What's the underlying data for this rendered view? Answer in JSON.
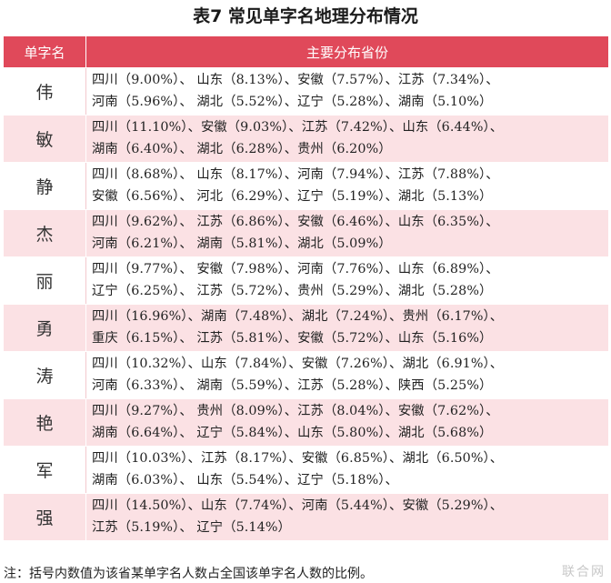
{
  "title": "表7 常见单字名地理分布情况",
  "header": {
    "col1": "单字名",
    "col2": "主要分布省份"
  },
  "rows": [
    {
      "name": "伟",
      "line1": "四川（9.00%）、 山东（8.13%）、安徽（7.57%）、江苏（7.34%）、",
      "line2": "河南（5.96%）、 湖北（5.52%）、辽宁（5.28%）、湖南（5.10%）"
    },
    {
      "name": "敏",
      "line1": "四川（11.10%）、安徽（9.03%）、江苏（7.42%）、山东（6.44%）、",
      "line2": "湖南（6.40%）、 湖北（6.28%）、贵州（6.20%）"
    },
    {
      "name": "静",
      "line1": "四川（8.68%）、 山东（8.17%）、河南（7.94%）、江苏（7.88%）、",
      "line2": "安徽（6.56%）、 河北（6.29%）、辽宁（5.19%）、湖北（5.13%）"
    },
    {
      "name": "杰",
      "line1": "四川（9.62%）、 江苏（6.86%）、安徽（6.46%）、山东（6.35%）、",
      "line2": "河南（6.21%）、 湖南（5.81%）、湖北（5.09%）"
    },
    {
      "name": "丽",
      "line1": "四川（9.77%）、 安徽（7.98%）、河南（7.76%）、山东（6.89%）、",
      "line2": "辽宁（6.25%）、 江苏（5.72%）、贵州（5.29%）、湖北（5.28%）"
    },
    {
      "name": "勇",
      "line1": "四川（16.96%）、湖南（7.48%）、湖北（7.24%）、贵州（6.17%）、",
      "line2": "重庆（6.15%）、 江苏（5.81%）、安徽（5.72%）、山东（5.16%）"
    },
    {
      "name": "涛",
      "line1": "四川（10.32%）、山东（7.84%）、安徽（7.26%）、湖北（6.91%）、",
      "line2": "河南（6.33%）、 湖南（5.59%）、江苏（5.28%）、陕西（5.25%）"
    },
    {
      "name": "艳",
      "line1": "四川（9.27%）、 贵州（8.09%）、江苏（8.04%）、安徽（7.62%）、",
      "line2": "湖南（6.64%）、 辽宁（5.84%）、山东（5.80%）、湖北（5.68%）"
    },
    {
      "name": "军",
      "line1": "四川（10.03%）、江苏（8.17%）、安徽（6.85%）、湖北（6.50%）、",
      "line2": "湖南（6.03%）、 山东（5.54%）、辽宁（5.18%）、"
    },
    {
      "name": "强",
      "line1": "四川（14.50%）、山东（7.74%）、河南（5.44%）、安徽（5.29%）、",
      "line2": "江苏（5.19%）、 辽宁（5.14%）"
    }
  ],
  "footnote": "注：括号内数值为该省某单字名人数占全国该单字名人数的比例。",
  "watermark": "联合网"
}
